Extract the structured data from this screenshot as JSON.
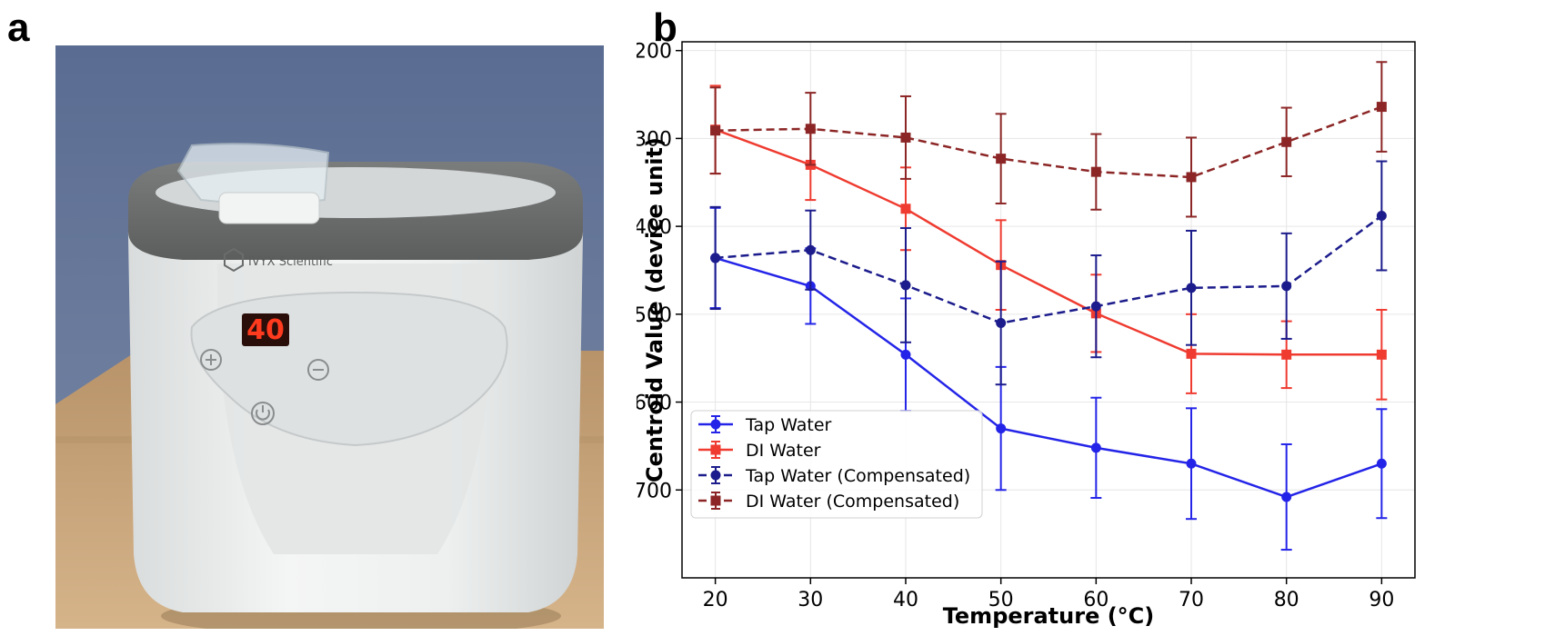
{
  "panels": {
    "a": "a",
    "b": "b"
  },
  "photo": {
    "brand_text": "IVYX Scientific",
    "display_value": "40",
    "colors": {
      "wall": "#6f7fa0",
      "table": "#c9a77a",
      "body": "#eceeee",
      "lid": "#6b6d6d",
      "display": "#ff3b1f"
    },
    "icons": [
      "plus-icon",
      "minus-icon",
      "power-icon"
    ]
  },
  "chart_data": {
    "type": "line",
    "xlabel": "Temperature (°C)",
    "ylabel": "Centroid Value (device unit)",
    "x": [
      20,
      30,
      40,
      50,
      60,
      70,
      80,
      90
    ],
    "xlim": [
      16.5,
      93.5
    ],
    "ylim": [
      -800,
      -190
    ],
    "xticks": [
      20,
      30,
      40,
      50,
      60,
      70,
      80,
      90
    ],
    "yticks": [
      -700,
      -600,
      -500,
      -400,
      -300,
      -200
    ],
    "grid": true,
    "legend_position": "lower-left",
    "series": [
      {
        "name": "Tap Water",
        "color": "#2424e8",
        "dashed": false,
        "marker": "circle",
        "values": [
          -436,
          -468,
          -546,
          -630,
          -652,
          -670,
          -708,
          -670
        ],
        "errors": [
          57,
          43,
          64,
          70,
          57,
          63,
          60,
          62
        ]
      },
      {
        "name": "DI Water",
        "color": "#ef3b30",
        "dashed": false,
        "marker": "square",
        "values": [
          -290,
          -330,
          -380,
          -444,
          -499,
          -545,
          -546,
          -546
        ],
        "errors": [
          50,
          40,
          47,
          51,
          44,
          45,
          38,
          51
        ]
      },
      {
        "name": "Tap Water (Compensated)",
        "color": "#1c1c8c",
        "dashed": true,
        "marker": "circle",
        "values": [
          -436,
          -427,
          -467,
          -510,
          -491,
          -470,
          -468,
          -388
        ],
        "errors": [
          58,
          45,
          65,
          70,
          58,
          65,
          60,
          62
        ]
      },
      {
        "name": "DI Water (Compensated)",
        "color": "#8c2626",
        "dashed": true,
        "marker": "square",
        "values": [
          -291,
          -289,
          -299,
          -323,
          -338,
          -344,
          -304,
          -264
        ],
        "errors": [
          49,
          41,
          47,
          51,
          43,
          45,
          39,
          51
        ]
      }
    ]
  }
}
